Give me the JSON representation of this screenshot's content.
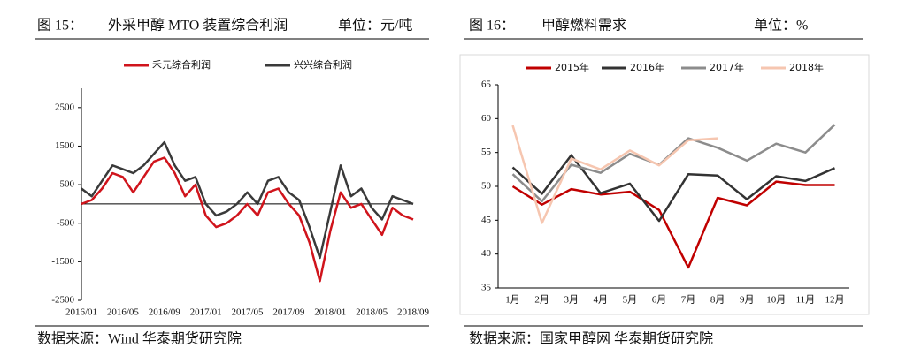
{
  "chart_data": [
    {
      "type": "line",
      "figure_label": "图 15：",
      "title": "外采甲醇 MTO 装置综合利润",
      "unit": "单位：元/吨",
      "source": "数据来源：Wind  华泰期货研究院",
      "categories": [
        "2016/01",
        null,
        null,
        null,
        "2016/05",
        null,
        null,
        null,
        "2016/09",
        null,
        null,
        null,
        "2017/01",
        null,
        null,
        null,
        "2017/05",
        null,
        null,
        null,
        "2017/09",
        null,
        null,
        null,
        "2018/01",
        null,
        null,
        null,
        "2018/05",
        null,
        null,
        null,
        "2018/09"
      ],
      "series": [
        {
          "name": "禾元综合利润",
          "color": "#d0141c",
          "values": [
            0,
            100,
            400,
            800,
            700,
            300,
            700,
            1100,
            1200,
            800,
            200,
            500,
            -300,
            -600,
            -500,
            -300,
            0,
            -300,
            300,
            400,
            0,
            -300,
            -1000,
            -2000,
            -700,
            300,
            -100,
            0,
            -400,
            -800,
            -100,
            -300,
            -400
          ]
        },
        {
          "name": "兴兴综合利润",
          "color": "#3a3a3a",
          "values": [
            400,
            200,
            600,
            1000,
            900,
            800,
            1000,
            1300,
            1600,
            1000,
            600,
            700,
            0,
            -300,
            -200,
            0,
            300,
            0,
            600,
            700,
            300,
            100,
            -600,
            -1400,
            -200,
            1000,
            200,
            400,
            -100,
            -400,
            200,
            100,
            0
          ]
        }
      ],
      "ylim": [
        -2500,
        3000
      ],
      "yticks": [
        -2500,
        -1500,
        -500,
        500,
        1500,
        2500
      ],
      "legend": "top"
    },
    {
      "type": "line",
      "figure_label": "图 16：",
      "title": "甲醇燃料需求",
      "unit": "单位：%",
      "source": "数据来源：国家甲醇网  华泰期货研究院",
      "categories": [
        "1月",
        "2月",
        "3月",
        "4月",
        "5月",
        "6月",
        "7月",
        "8月",
        "9月",
        "10月",
        "11月",
        "12月"
      ],
      "series": [
        {
          "name": "2015年",
          "color": "#c00000",
          "values": [
            50,
            47.3,
            49.6,
            48.8,
            49.2,
            46.5,
            38,
            48.3,
            47.2,
            50.7,
            50.2,
            50.2
          ]
        },
        {
          "name": "2016年",
          "color": "#333333",
          "values": [
            52.8,
            48.9,
            54.6,
            49,
            50.4,
            44.9,
            51.8,
            51.6,
            48.1,
            51.5,
            50.8,
            52.7
          ]
        },
        {
          "name": "2017年",
          "color": "#8c8c8c",
          "values": [
            51.8,
            47.8,
            53.2,
            52,
            54.8,
            53.2,
            57.1,
            55.7,
            53.8,
            56.3,
            55,
            59.1
          ]
        },
        {
          "name": "2018年",
          "color": "#f6c6b0",
          "values": [
            59,
            44.6,
            54.1,
            52.5,
            55.3,
            53.1,
            56.8,
            57.1,
            null,
            null,
            null,
            null
          ]
        }
      ],
      "ylim": [
        35,
        65
      ],
      "yticks": [
        35,
        40,
        45,
        50,
        55,
        60,
        65
      ],
      "legend": "top"
    }
  ]
}
